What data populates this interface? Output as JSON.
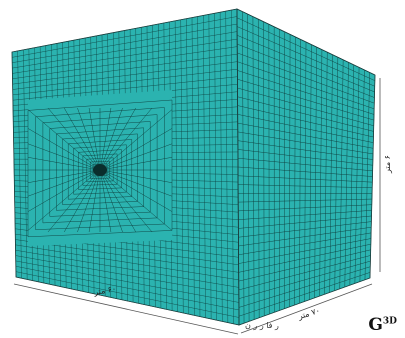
{
  "labels": {
    "height": "۶ متر",
    "front_width": "۶۰ متر",
    "side_depth": "۷۰ متر"
  },
  "footer": {
    "partial_text": "ر فا    ر  ر     ن",
    "logo_main": "G",
    "logo_super": "3D"
  },
  "colors": {
    "face": "#2bb3b0",
    "mesh_line": "#0d3d3c",
    "frame_line": "#555555"
  }
}
